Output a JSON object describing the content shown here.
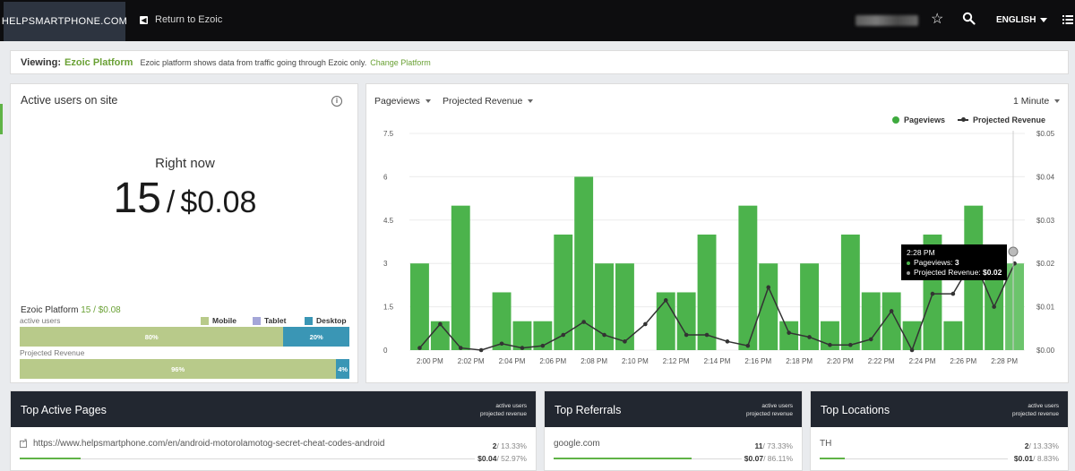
{
  "topbar": {
    "brand": "HELPSMARTPHONE.COM",
    "return_label": "Return to Ezoic",
    "icons": [
      "star-icon",
      "search-icon",
      "list-menu-icon"
    ],
    "language": "ENGLISH"
  },
  "viewing": {
    "label": "Viewing:",
    "platform": "Ezoic Platform",
    "description": "Ezoic platform shows data from traffic going through Ezoic only.",
    "change_link": "Change Platform"
  },
  "active_users": {
    "title": "Active users on site",
    "right_now_label": "Right now",
    "count": "15",
    "separator": "/",
    "revenue": "$0.08",
    "platform_label": "Ezoic Platform",
    "platform_stats": "15 / $0.08",
    "active_users_label": "active users",
    "projected_revenue_label": "Projected Revenue",
    "legend": [
      {
        "name": "Mobile",
        "color": "#b8ca8a"
      },
      {
        "name": "Tablet",
        "color": "#a4a6d8"
      },
      {
        "name": "Desktop",
        "color": "#3a96b5"
      }
    ],
    "users_split": {
      "mobile_label": "80%",
      "desktop_label": "20%",
      "mobile": 0.8,
      "desktop": 0.2
    },
    "revenue_split": {
      "mobile_label": "96%",
      "desktop_label": "4%",
      "mobile": 0.96,
      "desktop": 0.04
    }
  },
  "chart_controls": {
    "metric_1": "Pageviews",
    "metric_2": "Projected Revenue",
    "interval": "1 Minute"
  },
  "chart_data": {
    "type": "bar",
    "legend": [
      "Pageviews",
      "Projected Revenue"
    ],
    "colors": {
      "bars": "#4cb34c",
      "line": "#333333"
    },
    "y_left": {
      "ticks": [
        "0",
        "1.5",
        "3",
        "4.5",
        "6",
        "7.5"
      ],
      "range": [
        0,
        7.5
      ]
    },
    "y_right": {
      "ticks": [
        "$0.00",
        "$0.01",
        "$0.02",
        "$0.03",
        "$0.04",
        "$0.05"
      ],
      "range": [
        0,
        0.05
      ]
    },
    "x_ticks": [
      "2:00 PM",
      "2:02 PM",
      "2:04 PM",
      "2:06 PM",
      "2:08 PM",
      "2:10 PM",
      "2:12 PM",
      "2:14 PM",
      "2:16 PM",
      "2:18 PM",
      "2:20 PM",
      "2:22 PM",
      "2:24 PM",
      "2:26 PM",
      "2:28 PM"
    ],
    "series": [
      {
        "name": "Pageviews",
        "values": [
          3,
          1,
          5,
          0,
          2,
          1,
          1,
          4,
          6,
          3,
          3,
          0,
          2,
          2,
          4,
          0,
          5,
          3,
          1,
          3,
          1,
          4,
          2,
          2,
          1,
          4,
          1,
          5,
          3,
          3
        ]
      },
      {
        "name": "Projected Revenue",
        "values": [
          0.0005,
          0.006,
          0.0005,
          0,
          0.0015,
          0.0005,
          0.001,
          0.0035,
          0.0065,
          0.0035,
          0.002,
          0.006,
          0.0115,
          0.0035,
          0.0035,
          0.002,
          0.001,
          0.0145,
          0.004,
          0.003,
          0.0012,
          0.0012,
          0.0025,
          0.009,
          0,
          0.013,
          0.013,
          0.021,
          0.01,
          0.02
        ]
      }
    ],
    "tooltip": {
      "time": "2:28 PM",
      "pageviews_label": "Pageviews:",
      "pageviews": "3",
      "revenue_label": "Projected Revenue:",
      "revenue": "$0.02"
    }
  },
  "bottom": {
    "meta_1": "active users",
    "meta_2": "projected revenue",
    "pages": {
      "title": "Top Active Pages",
      "row_label": "https://www.helpsmartphone.com/en/android-motorolamotog-secret-cheat-codes-android",
      "users": "2",
      "users_pct": "/ 13.33%",
      "revenue": "$0.04",
      "revenue_pct": "/ 52.97%",
      "progress": 0.1333
    },
    "referrals": {
      "title": "Top Referrals",
      "row_label": "google.com",
      "users": "11",
      "users_pct": "/ 73.33%",
      "revenue": "$0.07",
      "revenue_pct": "/ 86.11%",
      "progress": 0.7333
    },
    "locations": {
      "title": "Top Locations",
      "row_label": "TH",
      "users": "2",
      "users_pct": "/ 13.33%",
      "revenue": "$0.01",
      "revenue_pct": "/ 8.83%",
      "progress": 0.1333
    }
  }
}
